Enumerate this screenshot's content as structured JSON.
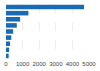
{
  "chart_data": {
    "type": "bar",
    "orientation": "horizontal",
    "categories": [
      null,
      null,
      null,
      null,
      null,
      null,
      null,
      null,
      null
    ],
    "values": [
      4700,
      1350,
      850,
      650,
      430,
      320,
      240,
      190,
      160
    ],
    "color": "#1a6bb5",
    "xlim": [
      0,
      5000
    ],
    "xticks": [
      0,
      1000,
      2000,
      3000,
      4000,
      5000
    ],
    "grid": true,
    "tick_labels": "x"
  }
}
